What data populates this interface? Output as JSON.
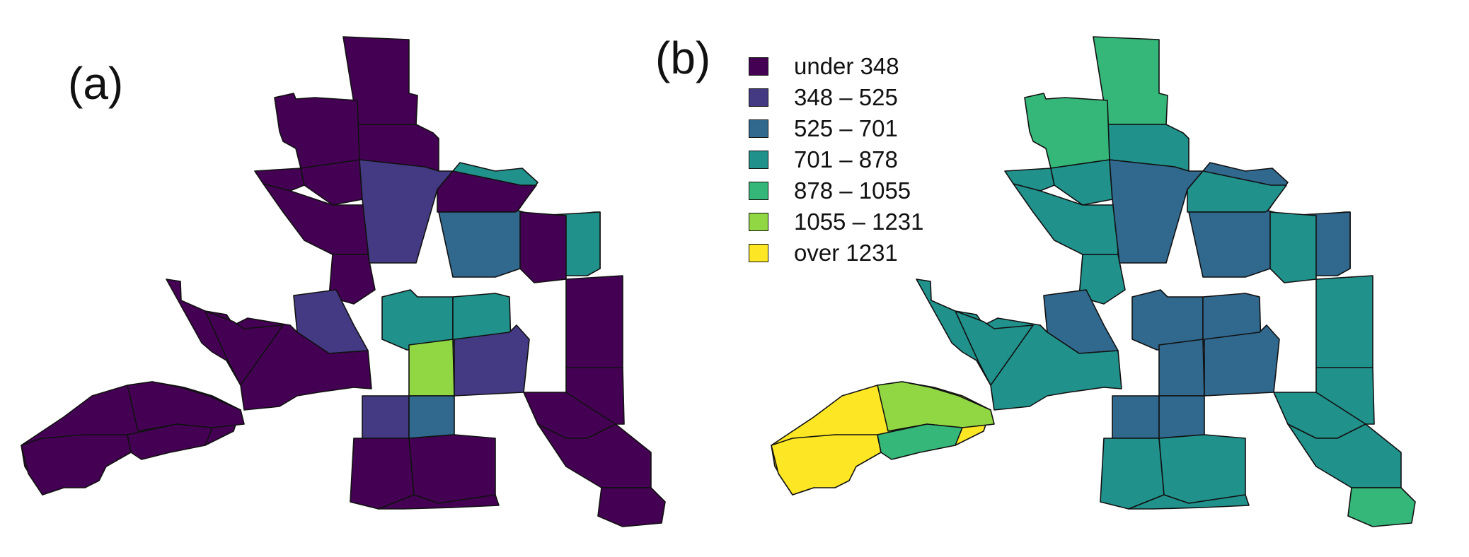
{
  "panels": {
    "a": {
      "label": "(a)"
    },
    "b": {
      "label": "(b)"
    }
  },
  "legend": {
    "title": "",
    "items": [
      {
        "label": "under 348",
        "color": "#440154"
      },
      {
        "label": "348 – 525",
        "color": "#443a83"
      },
      {
        "label": "525 – 701",
        "color": "#31688e"
      },
      {
        "label": "701 – 878",
        "color": "#21918c"
      },
      {
        "label": "878 – 1055",
        "color": "#35b779"
      },
      {
        "label": "1055 – 1231",
        "color": "#90d743"
      },
      {
        "label": "over 1231",
        "color": "#fde725"
      }
    ]
  },
  "chart_data": {
    "type": "choropleth",
    "maps": [
      {
        "panel": "(a)",
        "classes_by_zone": {
          "north-upper": 0,
          "north-lower": 0,
          "nw-1": 0,
          "nw-2": 0,
          "nw-3": 0,
          "nw-4": 0,
          "nw-5": 0,
          "north-mid": 1,
          "center-north": 3,
          "ne-1": 0,
          "ne-2": 0,
          "east-1": 2,
          "east-2": 3,
          "east-far-1": 0,
          "east-far-2": 0,
          "center-1": 3,
          "center-2": 3,
          "center-bright": 5,
          "center-right": 1,
          "center-left-blue": 1,
          "west-big": 0,
          "west-arm": 0,
          "sw-1": 0,
          "sw-2": 0,
          "sw-3": 0,
          "sw-4": 0,
          "south-1": 1,
          "south-2": 2,
          "south-3": 0,
          "south-4": 0,
          "south-5": 0,
          "se-1": 0,
          "se-2": 0,
          "se-3": 0,
          "se-4": 0
        }
      },
      {
        "panel": "(b)",
        "classes_by_zone": {
          "north-upper": 4,
          "north-lower": 3,
          "nw-1": 4,
          "nw-2": 3,
          "nw-3": 3,
          "nw-4": 3,
          "nw-5": 3,
          "north-mid": 2,
          "center-north": 2,
          "ne-1": 3,
          "ne-2": 2,
          "east-1": 2,
          "east-2": 2,
          "east-far-1": 3,
          "east-far-2": 3,
          "center-1": 2,
          "center-2": 2,
          "center-bright": 2,
          "center-right": 2,
          "center-left-blue": 2,
          "west-big": 3,
          "west-arm": 3,
          "sw-1": 6,
          "sw-2": 5,
          "sw-3": 6,
          "sw-4": 4,
          "south-1": 2,
          "south-2": 2,
          "south-3": 3,
          "south-4": 3,
          "south-5": 3,
          "se-1": 3,
          "se-2": 3,
          "se-3": 3,
          "se-4": 4
        }
      }
    ]
  }
}
